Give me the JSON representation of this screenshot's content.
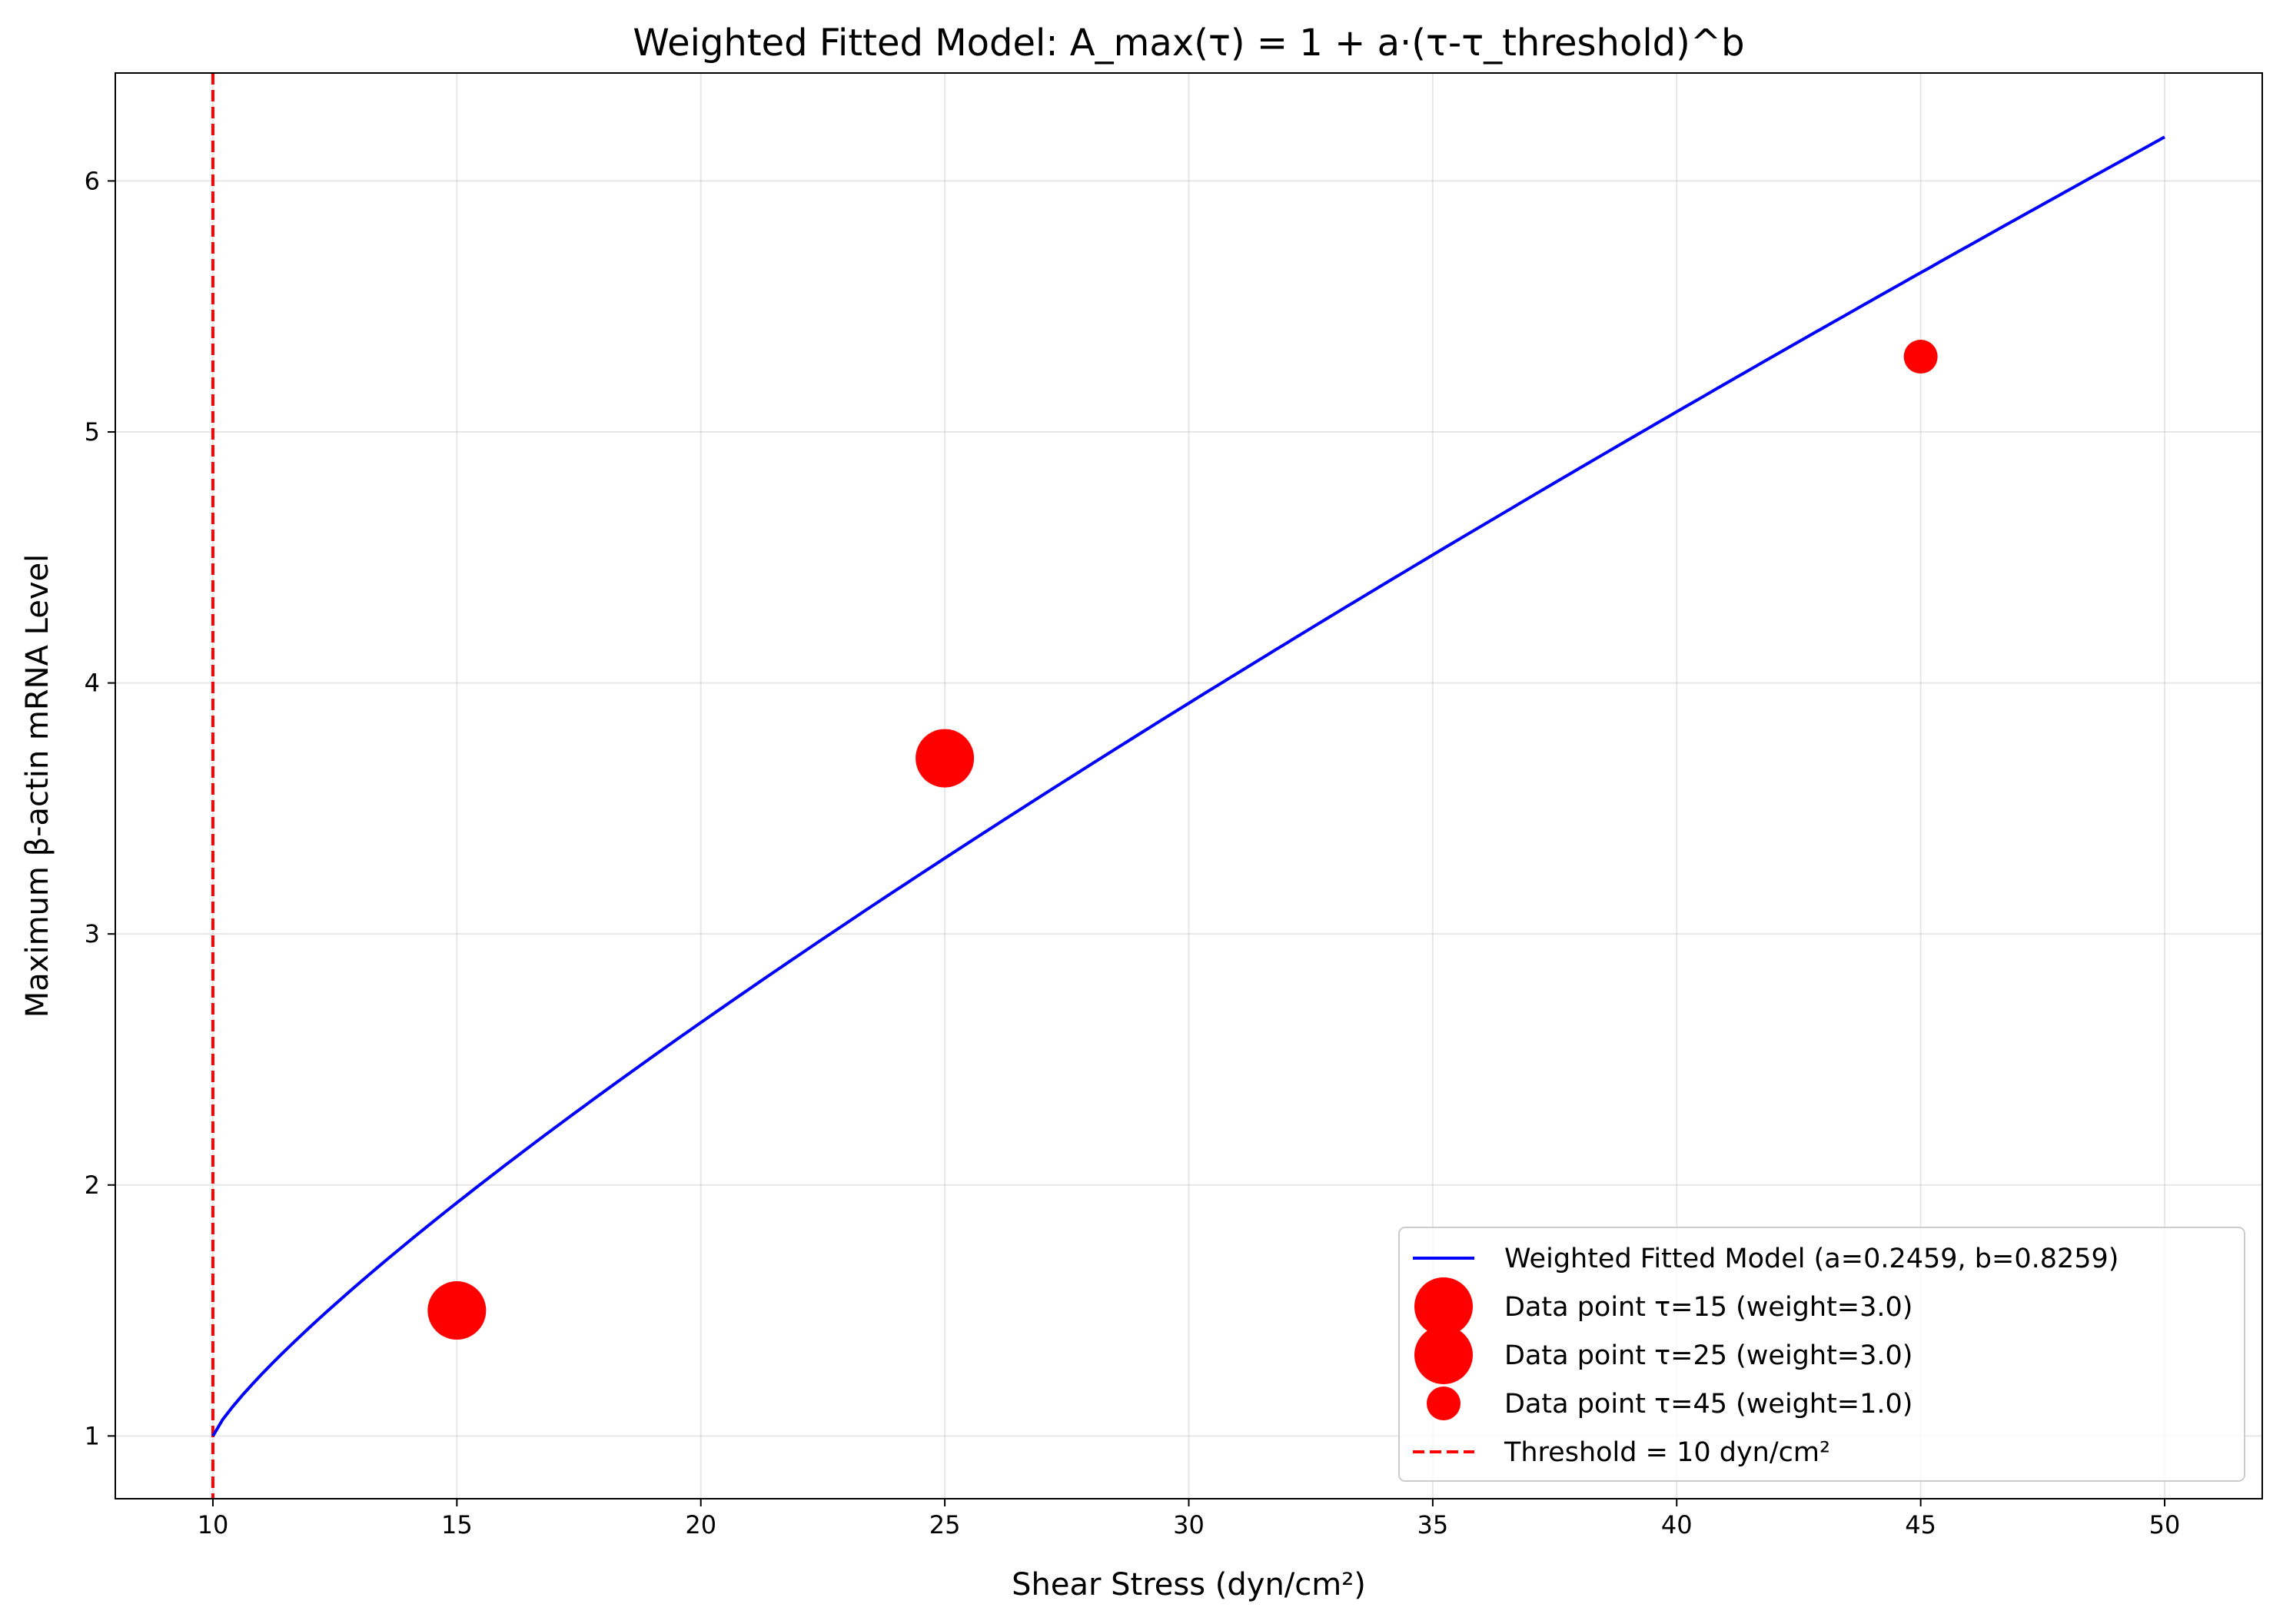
{
  "chart_data": {
    "type": "scatter",
    "title": "Weighted Fitted Model: A_max(τ) = 1 + a·(τ-τ_threshold)^b",
    "xlabel": "Shear Stress (dyn/cm²)",
    "ylabel": "Maximum β-actin mRNA Level",
    "xlim": [
      8,
      52
    ],
    "ylim": [
      0.75,
      6.43
    ],
    "xticks": [
      10,
      15,
      20,
      25,
      30,
      35,
      40,
      45,
      50
    ],
    "yticks": [
      1,
      2,
      3,
      4,
      5,
      6
    ],
    "grid": true,
    "legend_position": "lower right",
    "model": {
      "name": "Weighted Fitted Model (a=0.2459, b=0.8259)",
      "a": 0.2459,
      "b": 0.8259,
      "tau_threshold": 10,
      "x_range": [
        10,
        50
      ],
      "color": "#0000ff"
    },
    "points": [
      {
        "name": "Data point τ=15 (weight=3.0)",
        "x": 15,
        "y": 1.5,
        "weight": 3.0,
        "color": "#ff0000"
      },
      {
        "name": "Data point τ=25 (weight=3.0)",
        "x": 25,
        "y": 3.7,
        "weight": 3.0,
        "color": "#ff0000"
      },
      {
        "name": "Data point τ=45 (weight=1.0)",
        "x": 45,
        "y": 5.3,
        "weight": 1.0,
        "color": "#ff0000"
      }
    ],
    "threshold": {
      "name": "Threshold = 10 dyn/cm²",
      "x": 10,
      "color": "#ff0000",
      "style": "dashed"
    }
  }
}
